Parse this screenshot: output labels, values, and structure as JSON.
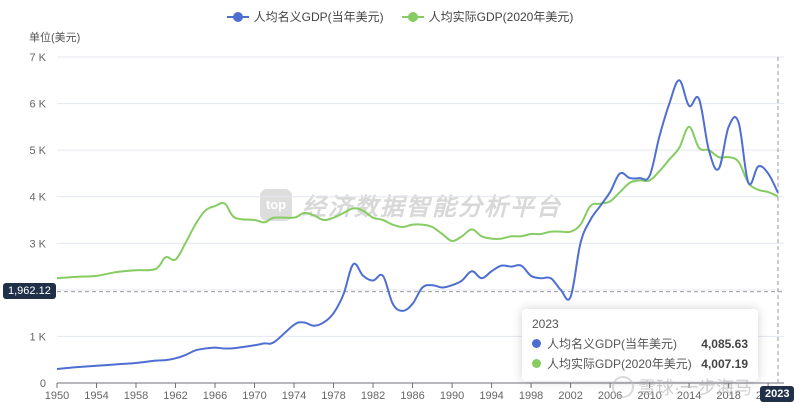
{
  "legend": [
    {
      "label": "人均名义GDP(当年美元)",
      "color": "#4e6fd1"
    },
    {
      "label": "人均实际GDP(2020年美元)",
      "color": "#86cc63"
    }
  ],
  "y_axis_unit": "单位(美元)",
  "y_ticks": [
    "0",
    "1 K",
    "2 K",
    "3 K",
    "4 K",
    "5 K",
    "6 K",
    "7 K"
  ],
  "x_ticks": [
    "1950",
    "1954",
    "1958",
    "1962",
    "1966",
    "1970",
    "1974",
    "1978",
    "1982",
    "1986",
    "1990",
    "1994",
    "1998",
    "2002",
    "2006",
    "2010",
    "2014",
    "2018",
    "2022"
  ],
  "axis_pointer": {
    "y_value_label": "1,962.12",
    "x_value_label": "2023"
  },
  "watermark": {
    "logo": "top",
    "text": "经济数据智能分析平台",
    "secondary": "雪球·一步海马"
  },
  "tooltip": {
    "title": "2023",
    "rows": [
      {
        "name": "人均名义GDP(当年美元)",
        "value": "4,085.63",
        "color": "#4e6fd1"
      },
      {
        "name": "人均实际GDP(2020年美元)",
        "value": "4,007.19",
        "color": "#86cc63"
      }
    ]
  },
  "chart_data": {
    "type": "line",
    "title": "",
    "xlabel": "",
    "ylabel": "单位(美元)",
    "ylim": [
      0,
      7000
    ],
    "grid": true,
    "legend_position": "top",
    "x": [
      1950,
      1952,
      1954,
      1956,
      1958,
      1960,
      1961,
      1962,
      1963,
      1964,
      1965,
      1966,
      1967,
      1968,
      1970,
      1971,
      1972,
      1974,
      1975,
      1976,
      1977,
      1978,
      1979,
      1980,
      1981,
      1982,
      1983,
      1984,
      1985,
      1986,
      1987,
      1988,
      1989,
      1990,
      1991,
      1992,
      1993,
      1994,
      1995,
      1996,
      1997,
      1998,
      1999,
      2000,
      2001,
      2002,
      2003,
      2004,
      2005,
      2006,
      2007,
      2008,
      2009,
      2010,
      2011,
      2012,
      2013,
      2014,
      2015,
      2016,
      2017,
      2018,
      2019,
      2020,
      2021,
      2022,
      2023
    ],
    "series": [
      {
        "name": "人均名义GDP(当年美元)",
        "color": "#4e6fd1",
        "values": [
          300,
          340,
          370,
          400,
          430,
          480,
          490,
          530,
          600,
          700,
          740,
          760,
          740,
          750,
          810,
          850,
          880,
          1250,
          1300,
          1230,
          1300,
          1500,
          1900,
          2550,
          2300,
          2200,
          2300,
          1700,
          1550,
          1700,
          2050,
          2100,
          2050,
          2100,
          2200,
          2400,
          2250,
          2400,
          2520,
          2500,
          2520,
          2300,
          2250,
          2250,
          2000,
          1850,
          3000,
          3500,
          3800,
          4100,
          4500,
          4400,
          4400,
          4450,
          5300,
          6000,
          6500,
          5950,
          6100,
          5000,
          4600,
          5500,
          5600,
          4300,
          4650,
          4500,
          4085.63
        ]
      },
      {
        "name": "人均实际GDP(2020年美元)",
        "color": "#86cc63",
        "values": [
          2250,
          2280,
          2300,
          2380,
          2420,
          2450,
          2700,
          2650,
          3000,
          3400,
          3700,
          3800,
          3850,
          3550,
          3500,
          3450,
          3550,
          3550,
          3650,
          3600,
          3500,
          3550,
          3650,
          3750,
          3700,
          3550,
          3500,
          3400,
          3350,
          3400,
          3400,
          3350,
          3200,
          3050,
          3150,
          3300,
          3150,
          3100,
          3100,
          3150,
          3150,
          3200,
          3200,
          3250,
          3250,
          3250,
          3400,
          3800,
          3850,
          3900,
          4100,
          4300,
          4350,
          4350,
          4550,
          4800,
          5050,
          5500,
          5050,
          5000,
          4850,
          4850,
          4750,
          4300,
          4150,
          4100,
          4007.19
        ]
      }
    ]
  }
}
